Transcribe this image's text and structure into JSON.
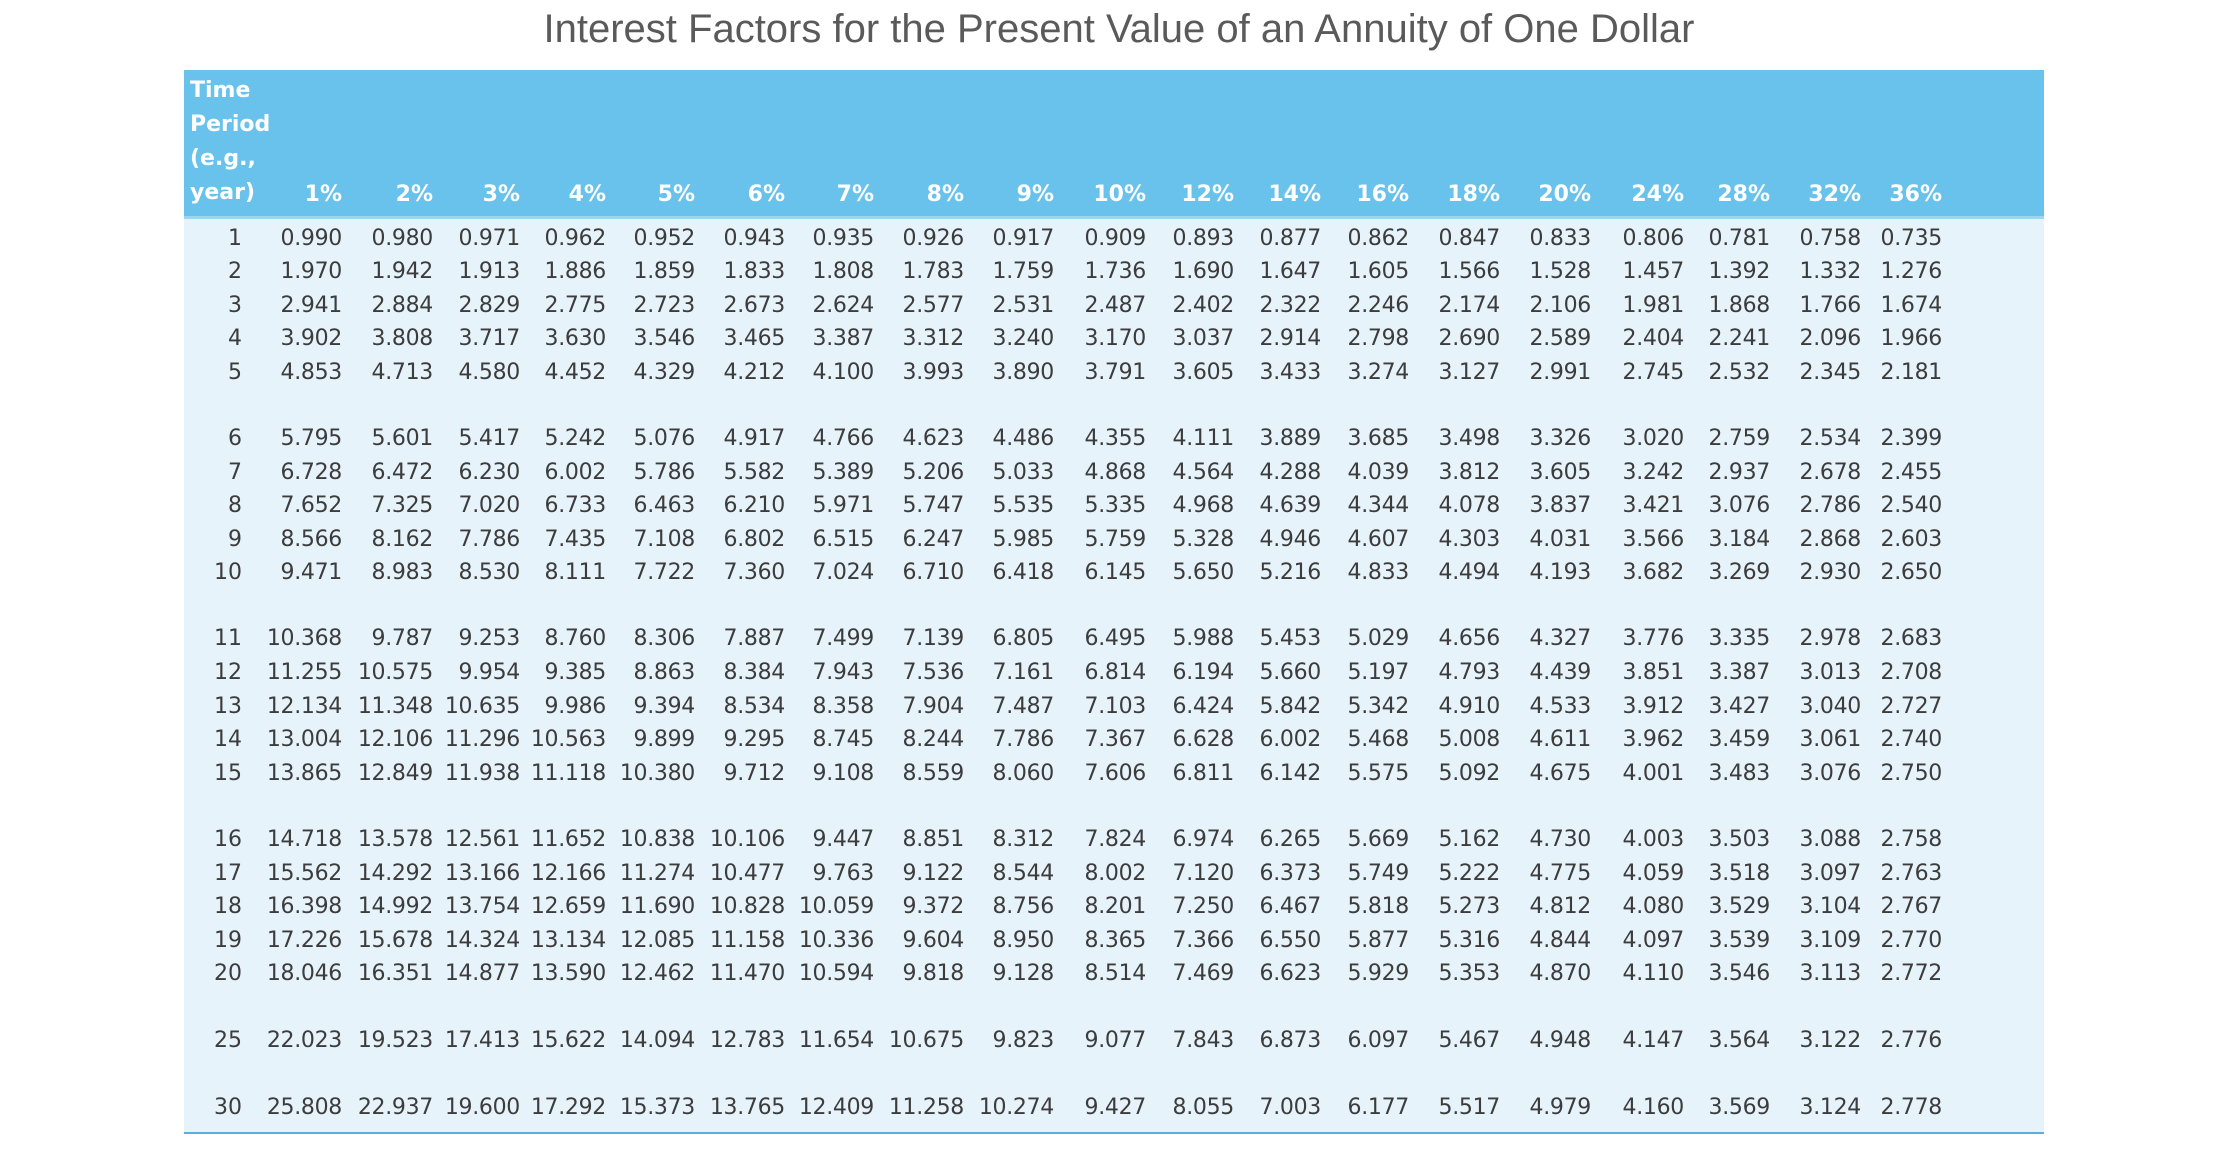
{
  "title": "Interest Factors for the Present Value of an Annuity of One Dollar",
  "column_header": {
    "time_label_lines": [
      "Time",
      "Period",
      "(e.g.,",
      "year)"
    ],
    "rates": [
      "1%",
      "2%",
      "3%",
      "4%",
      "5%",
      "6%",
      "7%",
      "8%",
      "9%",
      "10%",
      "12%",
      "14%",
      "16%",
      "18%",
      "20%",
      "24%",
      "28%",
      "32%",
      "36%"
    ]
  },
  "rows": [
    {
      "period": "1",
      "values": [
        "0.990",
        "0.980",
        "0.971",
        "0.962",
        "0.952",
        "0.943",
        "0.935",
        "0.926",
        "0.917",
        "0.909",
        "0.893",
        "0.877",
        "0.862",
        "0.847",
        "0.833",
        "0.806",
        "0.781",
        "0.758",
        "0.735"
      ]
    },
    {
      "period": "2",
      "values": [
        "1.970",
        "1.942",
        "1.913",
        "1.886",
        "1.859",
        "1.833",
        "1.808",
        "1.783",
        "1.759",
        "1.736",
        "1.690",
        "1.647",
        "1.605",
        "1.566",
        "1.528",
        "1.457",
        "1.392",
        "1.332",
        "1.276"
      ]
    },
    {
      "period": "3",
      "values": [
        "2.941",
        "2.884",
        "2.829",
        "2.775",
        "2.723",
        "2.673",
        "2.624",
        "2.577",
        "2.531",
        "2.487",
        "2.402",
        "2.322",
        "2.246",
        "2.174",
        "2.106",
        "1.981",
        "1.868",
        "1.766",
        "1.674"
      ]
    },
    {
      "period": "4",
      "values": [
        "3.902",
        "3.808",
        "3.717",
        "3.630",
        "3.546",
        "3.465",
        "3.387",
        "3.312",
        "3.240",
        "3.170",
        "3.037",
        "2.914",
        "2.798",
        "2.690",
        "2.589",
        "2.404",
        "2.241",
        "2.096",
        "1.966"
      ]
    },
    {
      "period": "5",
      "values": [
        "4.853",
        "4.713",
        "4.580",
        "4.452",
        "4.329",
        "4.212",
        "4.100",
        "3.993",
        "3.890",
        "3.791",
        "3.605",
        "3.433",
        "3.274",
        "3.127",
        "2.991",
        "2.745",
        "2.532",
        "2.345",
        "2.181"
      ]
    },
    {
      "period": "6",
      "values": [
        "5.795",
        "5.601",
        "5.417",
        "5.242",
        "5.076",
        "4.917",
        "4.766",
        "4.623",
        "4.486",
        "4.355",
        "4.111",
        "3.889",
        "3.685",
        "3.498",
        "3.326",
        "3.020",
        "2.759",
        "2.534",
        "2.399"
      ]
    },
    {
      "period": "7",
      "values": [
        "6.728",
        "6.472",
        "6.230",
        "6.002",
        "5.786",
        "5.582",
        "5.389",
        "5.206",
        "5.033",
        "4.868",
        "4.564",
        "4.288",
        "4.039",
        "3.812",
        "3.605",
        "3.242",
        "2.937",
        "2.678",
        "2.455"
      ]
    },
    {
      "period": "8",
      "values": [
        "7.652",
        "7.325",
        "7.020",
        "6.733",
        "6.463",
        "6.210",
        "5.971",
        "5.747",
        "5.535",
        "5.335",
        "4.968",
        "4.639",
        "4.344",
        "4.078",
        "3.837",
        "3.421",
        "3.076",
        "2.786",
        "2.540"
      ]
    },
    {
      "period": "9",
      "values": [
        "8.566",
        "8.162",
        "7.786",
        "7.435",
        "7.108",
        "6.802",
        "6.515",
        "6.247",
        "5.985",
        "5.759",
        "5.328",
        "4.946",
        "4.607",
        "4.303",
        "4.031",
        "3.566",
        "3.184",
        "2.868",
        "2.603"
      ]
    },
    {
      "period": "10",
      "values": [
        "9.471",
        "8.983",
        "8.530",
        "8.111",
        "7.722",
        "7.360",
        "7.024",
        "6.710",
        "6.418",
        "6.145",
        "5.650",
        "5.216",
        "4.833",
        "4.494",
        "4.193",
        "3.682",
        "3.269",
        "2.930",
        "2.650"
      ]
    },
    {
      "period": "11",
      "values": [
        "10.368",
        "9.787",
        "9.253",
        "8.760",
        "8.306",
        "7.887",
        "7.499",
        "7.139",
        "6.805",
        "6.495",
        "5.988",
        "5.453",
        "5.029",
        "4.656",
        "4.327",
        "3.776",
        "3.335",
        "2.978",
        "2.683"
      ]
    },
    {
      "period": "12",
      "values": [
        "11.255",
        "10.575",
        "9.954",
        "9.385",
        "8.863",
        "8.384",
        "7.943",
        "7.536",
        "7.161",
        "6.814",
        "6.194",
        "5.660",
        "5.197",
        "4.793",
        "4.439",
        "3.851",
        "3.387",
        "3.013",
        "2.708"
      ]
    },
    {
      "period": "13",
      "values": [
        "12.134",
        "11.348",
        "10.635",
        "9.986",
        "9.394",
        "8.534",
        "8.358",
        "7.904",
        "7.487",
        "7.103",
        "6.424",
        "5.842",
        "5.342",
        "4.910",
        "4.533",
        "3.912",
        "3.427",
        "3.040",
        "2.727"
      ]
    },
    {
      "period": "14",
      "values": [
        "13.004",
        "12.106",
        "11.296",
        "10.563",
        "9.899",
        "9.295",
        "8.745",
        "8.244",
        "7.786",
        "7.367",
        "6.628",
        "6.002",
        "5.468",
        "5.008",
        "4.611",
        "3.962",
        "3.459",
        "3.061",
        "2.740"
      ]
    },
    {
      "period": "15",
      "values": [
        "13.865",
        "12.849",
        "11.938",
        "11.118",
        "10.380",
        "9.712",
        "9.108",
        "8.559",
        "8.060",
        "7.606",
        "6.811",
        "6.142",
        "5.575",
        "5.092",
        "4.675",
        "4.001",
        "3.483",
        "3.076",
        "2.750"
      ]
    },
    {
      "period": "16",
      "values": [
        "14.718",
        "13.578",
        "12.561",
        "11.652",
        "10.838",
        "10.106",
        "9.447",
        "8.851",
        "8.312",
        "7.824",
        "6.974",
        "6.265",
        "5.669",
        "5.162",
        "4.730",
        "4.003",
        "3.503",
        "3.088",
        "2.758"
      ]
    },
    {
      "period": "17",
      "values": [
        "15.562",
        "14.292",
        "13.166",
        "12.166",
        "11.274",
        "10.477",
        "9.763",
        "9.122",
        "8.544",
        "8.002",
        "7.120",
        "6.373",
        "5.749",
        "5.222",
        "4.775",
        "4.059",
        "3.518",
        "3.097",
        "2.763"
      ]
    },
    {
      "period": "18",
      "values": [
        "16.398",
        "14.992",
        "13.754",
        "12.659",
        "11.690",
        "10.828",
        "10.059",
        "9.372",
        "8.756",
        "8.201",
        "7.250",
        "6.467",
        "5.818",
        "5.273",
        "4.812",
        "4.080",
        "3.529",
        "3.104",
        "2.767"
      ]
    },
    {
      "period": "19",
      "values": [
        "17.226",
        "15.678",
        "14.324",
        "13.134",
        "12.085",
        "11.158",
        "10.336",
        "9.604",
        "8.950",
        "8.365",
        "7.366",
        "6.550",
        "5.877",
        "5.316",
        "4.844",
        "4.097",
        "3.539",
        "3.109",
        "2.770"
      ]
    },
    {
      "period": "20",
      "values": [
        "18.046",
        "16.351",
        "14.877",
        "13.590",
        "12.462",
        "11.470",
        "10.594",
        "9.818",
        "9.128",
        "8.514",
        "7.469",
        "6.623",
        "5.929",
        "5.353",
        "4.870",
        "4.110",
        "3.546",
        "3.113",
        "2.772"
      ]
    },
    {
      "period": "25",
      "values": [
        "22.023",
        "19.523",
        "17.413",
        "15.622",
        "14.094",
        "12.783",
        "11.654",
        "10.675",
        "9.823",
        "9.077",
        "7.843",
        "6.873",
        "6.097",
        "5.467",
        "4.948",
        "4.147",
        "3.564",
        "3.122",
        "2.776"
      ]
    },
    {
      "period": "30",
      "values": [
        "25.808",
        "22.937",
        "19.600",
        "17.292",
        "15.373",
        "13.765",
        "12.409",
        "11.258",
        "10.274",
        "9.427",
        "8.055",
        "7.003",
        "6.177",
        "5.517",
        "4.979",
        "4.160",
        "3.569",
        "3.124",
        "2.778"
      ]
    }
  ]
}
